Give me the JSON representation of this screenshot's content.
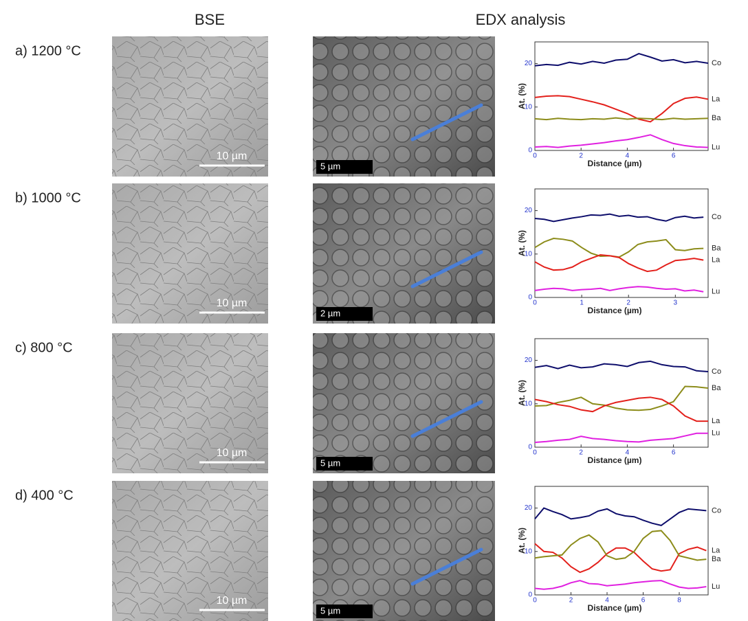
{
  "headers": {
    "bse": "BSE",
    "edx": "EDX analysis"
  },
  "panels": [
    {
      "label": "a) 1200 °C",
      "bse_scale": "10 µm",
      "edx_scale": "5 µm"
    },
    {
      "label": "b) 1000 °C",
      "bse_scale": "10 µm",
      "edx_scale": "2 µm"
    },
    {
      "label": "c) 800 °C",
      "bse_scale": "10 µm",
      "edx_scale": "5 µm"
    },
    {
      "label": "d) 400 °C",
      "bse_scale": "10 µm",
      "edx_scale": "5 µm"
    }
  ],
  "chart_data": [
    {
      "type": "line",
      "xlabel": "Distance (µm)",
      "ylabel": "At. (%)",
      "x": [
        0,
        0.5,
        1,
        1.5,
        2,
        2.5,
        3,
        3.5,
        4,
        4.5,
        5,
        5.5,
        6,
        6.5,
        7,
        7.5
      ],
      "xlim": [
        0,
        7.5
      ],
      "xticks": [
        0,
        2,
        4,
        6
      ],
      "ylim": [
        0,
        25
      ],
      "yticks": [
        0,
        10,
        20
      ],
      "series": [
        {
          "name": "Co",
          "color": "#0d0d6b",
          "values": [
            19.5,
            19.8,
            19.6,
            20.3,
            19.9,
            20.5,
            20.1,
            20.8,
            21.0,
            22.3,
            21.5,
            20.6,
            20.9,
            20.2,
            20.5,
            20.1
          ]
        },
        {
          "name": "La",
          "color": "#e3201b",
          "values": [
            12.2,
            12.5,
            12.6,
            12.4,
            11.8,
            11.2,
            10.5,
            9.5,
            8.5,
            7.2,
            6.6,
            8.5,
            10.8,
            12.0,
            12.3,
            11.8
          ]
        },
        {
          "name": "Ba",
          "color": "#8c8c1a",
          "values": [
            7.3,
            7.1,
            7.4,
            7.2,
            7.1,
            7.3,
            7.2,
            7.5,
            7.2,
            7.4,
            7.3,
            7.1,
            7.4,
            7.2,
            7.3,
            7.4
          ]
        },
        {
          "name": "Lu",
          "color": "#e020e0",
          "values": [
            0.8,
            0.9,
            0.7,
            1.0,
            1.2,
            1.5,
            1.8,
            2.2,
            2.5,
            3.0,
            3.6,
            2.5,
            1.6,
            1.1,
            0.8,
            0.7
          ]
        }
      ]
    },
    {
      "type": "line",
      "xlabel": "Distance (µm)",
      "ylabel": "At. (%)",
      "x": [
        0,
        0.2,
        0.4,
        0.6,
        0.8,
        1,
        1.2,
        1.4,
        1.6,
        1.8,
        2,
        2.2,
        2.4,
        2.6,
        2.8,
        3,
        3.2,
        3.4,
        3.6
      ],
      "xlim": [
        0,
        3.7
      ],
      "xticks": [
        0,
        1,
        2,
        3
      ],
      "ylim": [
        0,
        25
      ],
      "yticks": [
        0,
        10,
        20
      ],
      "series": [
        {
          "name": "Co",
          "color": "#0d0d6b",
          "values": [
            18.2,
            18.0,
            17.5,
            17.9,
            18.3,
            18.6,
            19.0,
            18.9,
            19.2,
            18.7,
            18.9,
            18.5,
            18.6,
            18.0,
            17.6,
            18.4,
            18.7,
            18.3,
            18.5
          ]
        },
        {
          "name": "Ba",
          "color": "#8c8c1a",
          "values": [
            11.5,
            12.8,
            13.6,
            13.4,
            13.0,
            11.5,
            10.2,
            9.5,
            9.6,
            9.3,
            10.5,
            12.2,
            12.8,
            13.0,
            13.3,
            11.0,
            10.8,
            11.2,
            11.3
          ]
        },
        {
          "name": "La",
          "color": "#e3201b",
          "values": [
            8.2,
            7.0,
            6.3,
            6.4,
            7.0,
            8.2,
            9.0,
            9.8,
            9.6,
            9.2,
            7.8,
            6.8,
            6.0,
            6.3,
            7.5,
            8.5,
            8.7,
            9.0,
            8.6
          ]
        },
        {
          "name": "Lu",
          "color": "#e020e0",
          "values": [
            1.6,
            1.9,
            2.1,
            2.0,
            1.6,
            1.8,
            1.9,
            2.1,
            1.6,
            2.0,
            2.3,
            2.5,
            2.4,
            2.1,
            1.9,
            2.0,
            1.5,
            1.7,
            1.3
          ]
        }
      ]
    },
    {
      "type": "line",
      "xlabel": "Distance (µm)",
      "ylabel": "At. (%)",
      "x": [
        0,
        0.5,
        1,
        1.5,
        2,
        2.5,
        3,
        3.5,
        4,
        4.5,
        5,
        5.5,
        6,
        6.5,
        7,
        7.5
      ],
      "xlim": [
        0,
        7.5
      ],
      "xticks": [
        0,
        2,
        4,
        6
      ],
      "ylim": [
        0,
        25
      ],
      "yticks": [
        0,
        10,
        20
      ],
      "series": [
        {
          "name": "Co",
          "color": "#0d0d6b",
          "values": [
            18.4,
            18.8,
            18.1,
            18.9,
            18.3,
            18.5,
            19.2,
            19.0,
            18.6,
            19.5,
            19.8,
            19.0,
            18.6,
            18.5,
            17.6,
            17.4
          ]
        },
        {
          "name": "Ba",
          "color": "#8c8c1a",
          "values": [
            9.5,
            9.6,
            10.3,
            10.8,
            11.5,
            10.0,
            9.7,
            9.0,
            8.6,
            8.5,
            8.7,
            9.5,
            10.5,
            14.0,
            13.9,
            13.6
          ]
        },
        {
          "name": "La",
          "color": "#e3201b",
          "values": [
            11.0,
            10.5,
            9.8,
            9.4,
            8.6,
            8.2,
            9.5,
            10.3,
            10.8,
            11.3,
            11.5,
            11.0,
            9.5,
            7.2,
            6.0,
            6.0
          ]
        },
        {
          "name": "Lu",
          "color": "#e020e0",
          "values": [
            1.1,
            1.3,
            1.6,
            1.8,
            2.5,
            2.0,
            1.8,
            1.5,
            1.3,
            1.2,
            1.6,
            1.8,
            2.0,
            2.6,
            3.2,
            3.2
          ]
        }
      ]
    },
    {
      "type": "line",
      "xlabel": "Distance (µm)",
      "ylabel": "At. (%)",
      "x": [
        0,
        0.5,
        1,
        1.5,
        2,
        2.5,
        3,
        3.5,
        4,
        4.5,
        5,
        5.5,
        6,
        6.5,
        7,
        7.5,
        8,
        8.5,
        9,
        9.5
      ],
      "xlim": [
        0,
        9.6
      ],
      "xticks": [
        0,
        2,
        4,
        6,
        8
      ],
      "ylim": [
        0,
        25
      ],
      "yticks": [
        0,
        10,
        20
      ],
      "series": [
        {
          "name": "Co",
          "color": "#0d0d6b",
          "values": [
            17.5,
            20.0,
            19.2,
            18.5,
            17.5,
            17.8,
            18.2,
            19.3,
            19.8,
            18.7,
            18.2,
            18.0,
            17.2,
            16.5,
            16.0,
            17.5,
            19.0,
            19.8,
            19.6,
            19.4
          ]
        },
        {
          "name": "La",
          "color": "#e3201b",
          "values": [
            11.8,
            10.0,
            9.8,
            8.5,
            6.5,
            5.2,
            6.0,
            7.5,
            9.5,
            10.8,
            10.8,
            9.8,
            7.8,
            6.0,
            5.5,
            5.8,
            9.5,
            10.5,
            11.0,
            10.2
          ]
        },
        {
          "name": "Ba",
          "color": "#8c8c1a",
          "values": [
            8.5,
            8.8,
            9.0,
            9.2,
            11.5,
            13.0,
            13.8,
            12.2,
            9.0,
            8.2,
            8.5,
            10.0,
            13.0,
            14.6,
            14.8,
            12.5,
            9.0,
            8.5,
            8.0,
            8.2
          ]
        },
        {
          "name": "Lu",
          "color": "#e020e0",
          "values": [
            1.5,
            1.3,
            1.5,
            2.0,
            2.8,
            3.3,
            2.6,
            2.5,
            2.1,
            2.3,
            2.5,
            2.8,
            3.0,
            3.2,
            3.3,
            2.5,
            1.8,
            1.5,
            1.6,
            1.9
          ]
        }
      ]
    }
  ]
}
